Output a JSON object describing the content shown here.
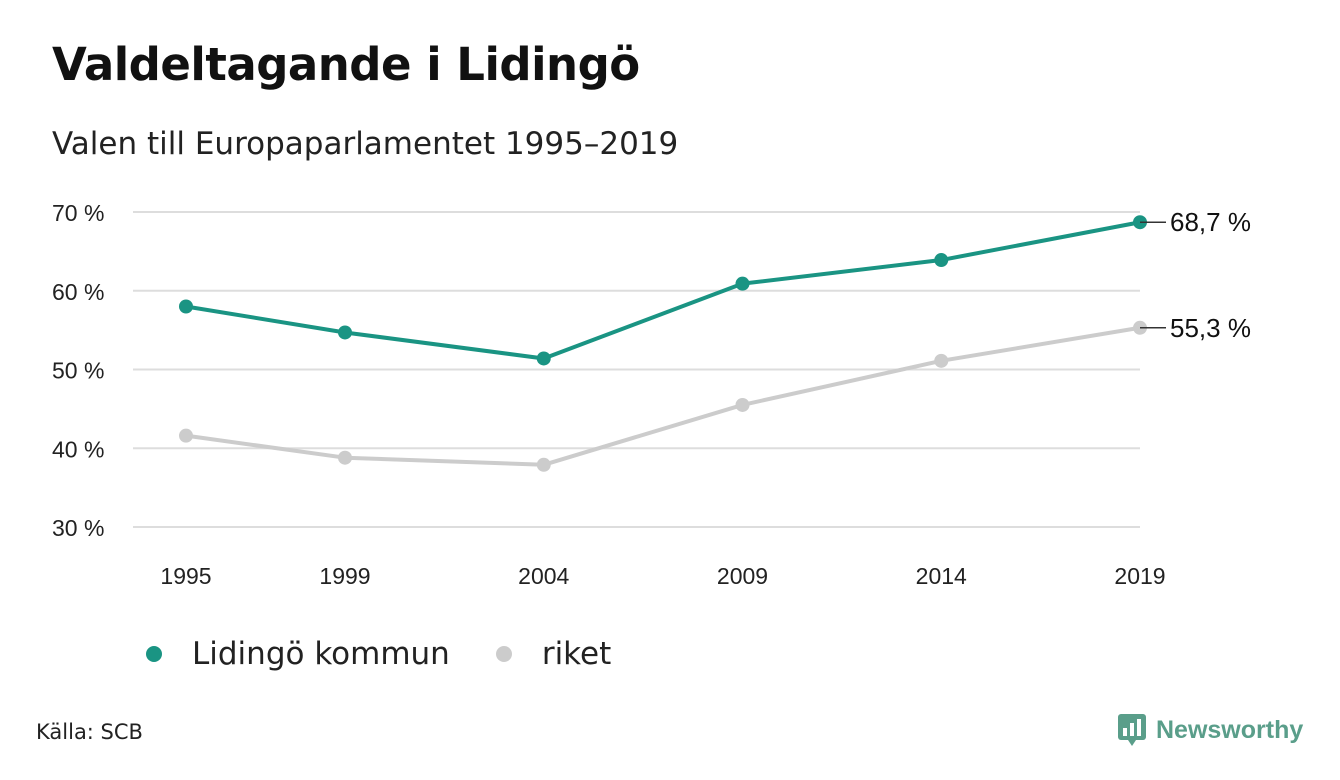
{
  "header": {
    "title": "Valdeltagande i Lidingö",
    "subtitle": "Valen till Europaparlamentet 1995–2019"
  },
  "footer": {
    "source": "Källa: SCB",
    "brand": "Newsworthy"
  },
  "colors": {
    "lidingo": "#1a9483",
    "riket": "#cccccc",
    "grid": "#dddddd",
    "brand": "#5a9e8a"
  },
  "chart_data": {
    "type": "line",
    "title": "Valdeltagande i Lidingö",
    "subtitle": "Valen till Europaparlamentet 1995–2019",
    "x": [
      "1995",
      "1999",
      "2004",
      "2009",
      "2014",
      "2019"
    ],
    "ylim": [
      30,
      70
    ],
    "yticks": [
      30,
      40,
      50,
      60,
      70
    ],
    "ytick_labels": [
      "30 %",
      "40 %",
      "50 %",
      "60 %",
      "70 %"
    ],
    "grid": true,
    "legend_position": "bottom-left",
    "series": [
      {
        "name": "Lidingö kommun",
        "color": "#1a9483",
        "values": [
          58.0,
          54.7,
          51.4,
          60.9,
          63.9,
          68.7
        ],
        "end_label": "68,7 %"
      },
      {
        "name": "riket",
        "color": "#cccccc",
        "values": [
          41.6,
          38.8,
          37.9,
          45.5,
          51.1,
          55.3
        ],
        "end_label": "55,3 %"
      }
    ]
  }
}
